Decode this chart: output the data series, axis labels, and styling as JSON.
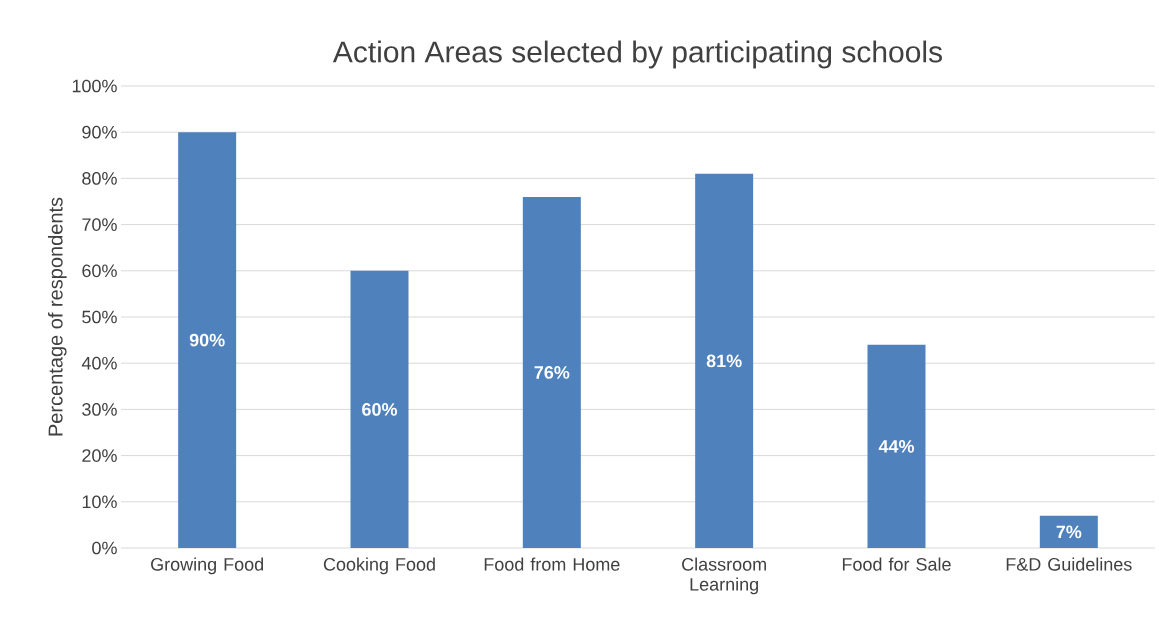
{
  "chart_data": {
    "type": "bar",
    "title": "Action Areas selected by participating schools",
    "ylabel": "Percentage of respondents",
    "categories": [
      "Growing Food",
      "Cooking Food",
      "Food from Home",
      "Classroom Learning",
      "Food for Sale",
      "F&D Guidelines"
    ],
    "values": [
      90,
      60,
      76,
      81,
      44,
      7
    ],
    "value_labels": [
      "90%",
      "60%",
      "76%",
      "81%",
      "44%",
      "7%"
    ],
    "color": "#4f81bd",
    "ylim": [
      0,
      100
    ],
    "yticks": [
      {
        "value": 0,
        "label": "0%"
      },
      {
        "value": 10,
        "label": "10%"
      },
      {
        "value": 20,
        "label": "20%"
      },
      {
        "value": 30,
        "label": "30%"
      },
      {
        "value": 40,
        "label": "40%"
      },
      {
        "value": 50,
        "label": "50%"
      },
      {
        "value": 60,
        "label": "60%"
      },
      {
        "value": 70,
        "label": "70%"
      },
      {
        "value": 80,
        "label": "80%"
      },
      {
        "value": 90,
        "label": "90%"
      },
      {
        "value": 100,
        "label": "100%"
      }
    ],
    "grid": "y"
  }
}
